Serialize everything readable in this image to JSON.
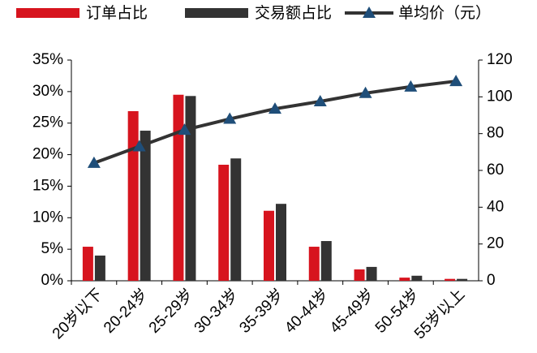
{
  "chart_data": {
    "type": "bar-line",
    "categories": [
      "20岁以下",
      "20-24岁",
      "25-29岁",
      "30-34岁",
      "35-39岁",
      "40-44岁",
      "45-49岁",
      "50-54岁",
      "55岁以上"
    ],
    "series": [
      {
        "name": "订单占比",
        "type": "bar",
        "color": "#d7141e",
        "values": [
          5.4,
          26.9,
          29.5,
          18.4,
          11.1,
          5.4,
          1.8,
          0.5,
          0.3
        ]
      },
      {
        "name": "交易额占比",
        "type": "bar",
        "color": "#333333",
        "values": [
          4.0,
          23.8,
          29.3,
          19.4,
          12.2,
          6.3,
          2.2,
          0.8,
          0.3
        ]
      },
      {
        "name": "单均价（元）",
        "type": "line",
        "axis": "y2",
        "color": "#333333",
        "marker_color": "#1f4e79",
        "values": [
          64,
          73,
          82,
          88,
          93.5,
          97.5,
          102,
          105.5,
          108.5
        ]
      }
    ],
    "ylim": [
      0,
      35
    ],
    "yticks": [
      {
        "value": 0,
        "label": "0%"
      },
      {
        "value": 5,
        "label": "5%"
      },
      {
        "value": 10,
        "label": "10%"
      },
      {
        "value": 15,
        "label": "15%"
      },
      {
        "value": 20,
        "label": "20%"
      },
      {
        "value": 25,
        "label": "25%"
      },
      {
        "value": 30,
        "label": "30%"
      },
      {
        "value": 35,
        "label": "35%"
      }
    ],
    "y2lim": [
      0,
      120
    ],
    "y2ticks": [
      0,
      20,
      40,
      60,
      80,
      100,
      120
    ]
  }
}
